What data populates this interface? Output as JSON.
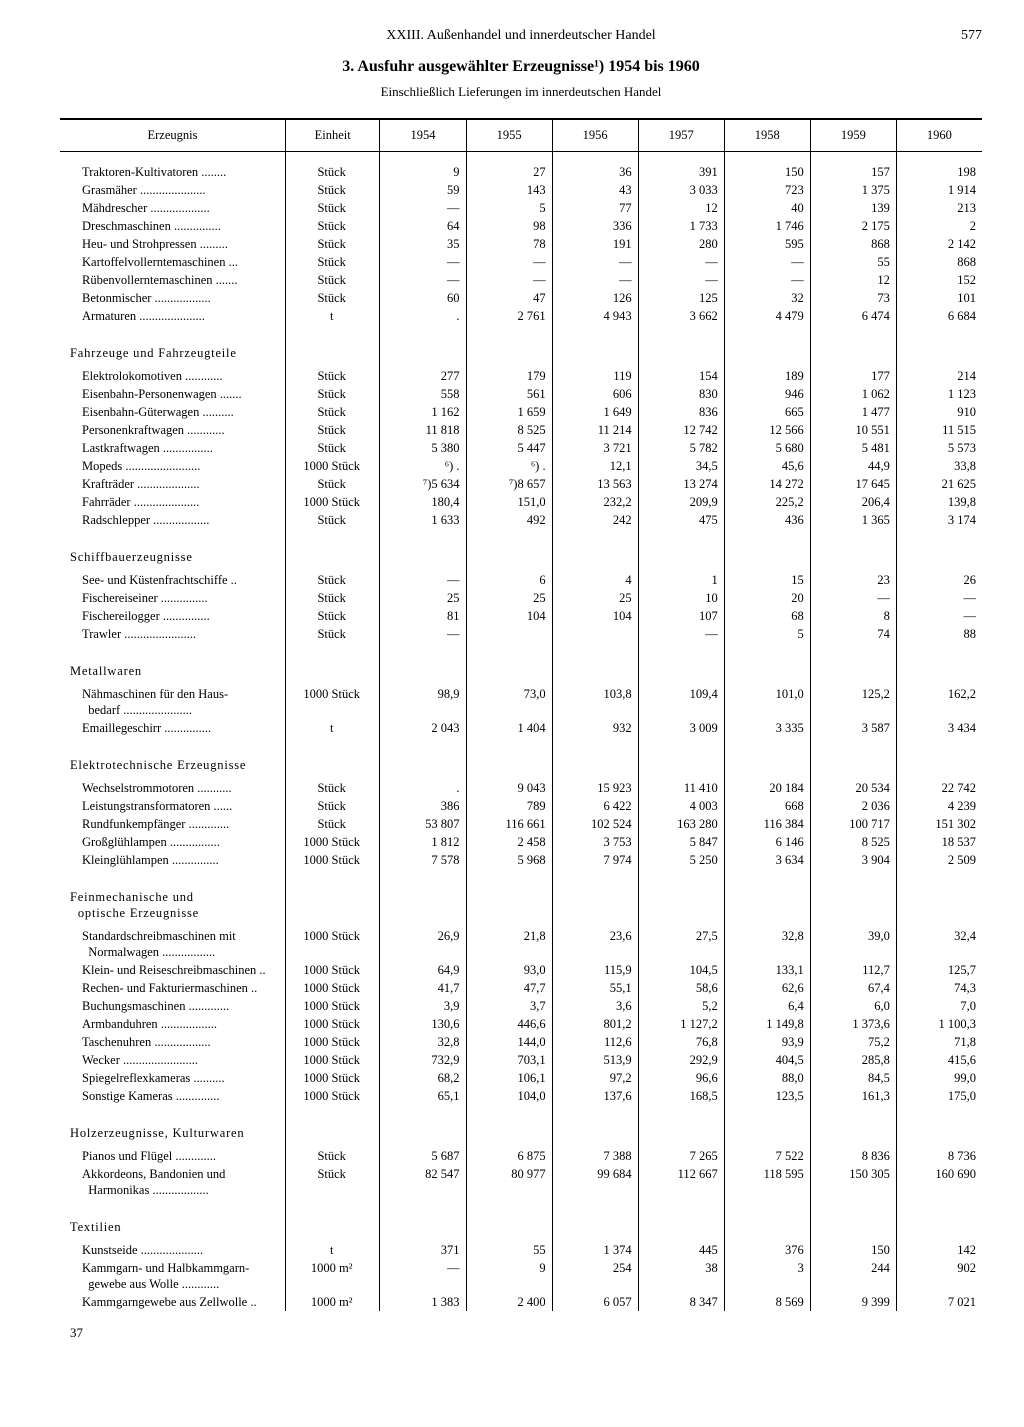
{
  "header": {
    "chapter": "XXIII. Außenhandel und innerdeutscher Handel",
    "page": "577"
  },
  "title": "3. Ausfuhr ausgewählter Erzeugnisse¹) 1954 bis 1960",
  "subtitle": "Einschließlich Lieferungen im innerdeutschen Handel",
  "columns": {
    "product": "Erzeugnis",
    "unit": "Einheit",
    "years": [
      "1954",
      "1955",
      "1956",
      "1957",
      "1958",
      "1959",
      "1960"
    ]
  },
  "footer": "37",
  "sections": [
    {
      "rows": [
        {
          "n": "Traktoren-Kultivatoren",
          "u": "Stück",
          "v": [
            "9",
            "27",
            "36",
            "391",
            "150",
            "157",
            "198"
          ]
        },
        {
          "n": "Grasmäher",
          "u": "Stück",
          "v": [
            "59",
            "143",
            "43",
            "3 033",
            "723",
            "1 375",
            "1 914"
          ]
        },
        {
          "n": "Mähdrescher",
          "u": "Stück",
          "v": [
            "—",
            "5",
            "77",
            "12",
            "40",
            "139",
            "213"
          ]
        },
        {
          "n": "Dreschmaschinen",
          "u": "Stück",
          "v": [
            "64",
            "98",
            "336",
            "1 733",
            "1 746",
            "2 175",
            "2"
          ]
        },
        {
          "n": "Heu- und Strohpressen",
          "u": "Stück",
          "v": [
            "35",
            "78",
            "191",
            "280",
            "595",
            "868",
            "2 142"
          ]
        },
        {
          "n": "Kartoffelvollerntemaschinen",
          "u": "Stück",
          "v": [
            "—",
            "—",
            "—",
            "—",
            "—",
            "55",
            "868"
          ]
        },
        {
          "n": "Rübenvollerntemaschinen",
          "u": "Stück",
          "v": [
            "—",
            "—",
            "—",
            "—",
            "—",
            "12",
            "152"
          ]
        },
        {
          "n": "Betonmischer",
          "u": "Stück",
          "v": [
            "60",
            "47",
            "126",
            "125",
            "32",
            "73",
            "101"
          ]
        },
        {
          "n": "Armaturen",
          "u": "t",
          "v": [
            ".",
            "2 761",
            "4 943",
            "3 662",
            "4 479",
            "6 474",
            "6 684"
          ]
        }
      ]
    },
    {
      "title": "Fahrzeuge und Fahrzeugteile",
      "rows": [
        {
          "n": "Elektrolokomotiven",
          "u": "Stück",
          "v": [
            "277",
            "179",
            "119",
            "154",
            "189",
            "177",
            "214"
          ]
        },
        {
          "n": "Eisenbahn-Personenwagen",
          "u": "Stück",
          "v": [
            "558",
            "561",
            "606",
            "830",
            "946",
            "1 062",
            "1 123"
          ]
        },
        {
          "n": "Eisenbahn-Güterwagen",
          "u": "Stück",
          "v": [
            "1 162",
            "1 659",
            "1 649",
            "836",
            "665",
            "1 477",
            "910"
          ]
        },
        {
          "n": "Personenkraftwagen",
          "u": "Stück",
          "v": [
            "11 818",
            "8 525",
            "11 214",
            "12 742",
            "12 566",
            "10 551",
            "11 515"
          ]
        },
        {
          "n": "Lastkraftwagen",
          "u": "Stück",
          "v": [
            "5 380",
            "5 447",
            "3 721",
            "5 782",
            "5 680",
            "5 481",
            "5 573"
          ]
        },
        {
          "n": "Mopeds",
          "u": "1000 Stück",
          "v": [
            "⁶) .",
            "⁶) .",
            "12,1",
            "34,5",
            "45,6",
            "44,9",
            "33,8"
          ]
        },
        {
          "n": "Krafträder",
          "u": "Stück",
          "v": [
            "⁷)5 634",
            "⁷)8 657",
            "13 563",
            "13 274",
            "14 272",
            "17 645",
            "21 625"
          ]
        },
        {
          "n": "Fahrräder",
          "u": "1000 Stück",
          "v": [
            "180,4",
            "151,0",
            "232,2",
            "209,9",
            "225,2",
            "206,4",
            "139,8"
          ]
        },
        {
          "n": "Radschlepper",
          "u": "Stück",
          "v": [
            "1 633",
            "492",
            "242",
            "475",
            "436",
            "1 365",
            "3 174"
          ]
        }
      ]
    },
    {
      "title": "Schiffbauerzeugnisse",
      "rows": [
        {
          "n": "See- und Küstenfrachtschiffe",
          "u": "Stück",
          "v": [
            "—",
            "6",
            "4",
            "1",
            "15",
            "23",
            "26"
          ]
        },
        {
          "n": "Fischereiseiner",
          "u": "Stück",
          "v": [
            "25",
            "25",
            "25",
            "10",
            "20",
            "—",
            "—"
          ]
        },
        {
          "n": "Fischereilogger",
          "u": "Stück",
          "v": [
            "81",
            "104",
            "104",
            "107",
            "68",
            "8",
            "—"
          ]
        },
        {
          "n": "Trawler",
          "u": "Stück",
          "v": [
            "—",
            "",
            "",
            "—",
            "5",
            "74",
            "88"
          ]
        }
      ]
    },
    {
      "title": "Metallwaren",
      "rows": [
        {
          "n": "Nähmaschinen für den Haus-\n  bedarf",
          "u": "1000 Stück",
          "v": [
            "98,9",
            "73,0",
            "103,8",
            "109,4",
            "101,0",
            "125,2",
            "162,2"
          ],
          "wrap": true
        },
        {
          "n": "Emaillegeschirr",
          "u": "t",
          "v": [
            "2 043",
            "1 404",
            "932",
            "3 009",
            "3 335",
            "3 587",
            "3 434"
          ]
        }
      ]
    },
    {
      "title": "Elektrotechnische Erzeugnisse",
      "rows": [
        {
          "n": "Wechselstrommotoren",
          "u": "Stück",
          "v": [
            ".",
            "9 043",
            "15 923",
            "11 410",
            "20 184",
            "20 534",
            "22 742"
          ]
        },
        {
          "n": "Leistungstransformatoren",
          "u": "Stück",
          "v": [
            "386",
            "789",
            "6 422",
            "4 003",
            "668",
            "2 036",
            "4 239"
          ]
        },
        {
          "n": "Rundfunkempfänger",
          "u": "Stück",
          "v": [
            "53 807",
            "116 661",
            "102 524",
            "163 280",
            "116 384",
            "100 717",
            "151 302"
          ]
        },
        {
          "n": "Großglühlampen",
          "u": "1000 Stück",
          "v": [
            "1 812",
            "2 458",
            "3 753",
            "5 847",
            "6 146",
            "8 525",
            "18 537"
          ]
        },
        {
          "n": "Kleinglühlampen",
          "u": "1000 Stück",
          "v": [
            "7 578",
            "5 968",
            "7 974",
            "5 250",
            "3 634",
            "3 904",
            "2 509"
          ]
        }
      ]
    },
    {
      "title": "Feinmechanische und\n  optische Erzeugnisse",
      "wrapTitle": true,
      "rows": [
        {
          "n": "Standardschreibmaschinen mit\n  Normalwagen",
          "u": "1000 Stück",
          "v": [
            "26,9",
            "21,8",
            "23,6",
            "27,5",
            "32,8",
            "39,0",
            "32,4"
          ],
          "wrap": true
        },
        {
          "n": "Klein- und Reiseschreibmaschinen",
          "u": "1000 Stück",
          "v": [
            "64,9",
            "93,0",
            "115,9",
            "104,5",
            "133,1",
            "112,7",
            "125,7"
          ]
        },
        {
          "n": "Rechen- und Fakturiermaschinen",
          "u": "1000 Stück",
          "v": [
            "41,7",
            "47,7",
            "55,1",
            "58,6",
            "62,6",
            "67,4",
            "74,3"
          ]
        },
        {
          "n": "Buchungsmaschinen",
          "u": "1000 Stück",
          "v": [
            "3,9",
            "3,7",
            "3,6",
            "5,2",
            "6,4",
            "6,0",
            "7,0"
          ]
        },
        {
          "n": "Armbanduhren",
          "u": "1000 Stück",
          "v": [
            "130,6",
            "446,6",
            "801,2",
            "1 127,2",
            "1 149,8",
            "1 373,6",
            "1 100,3"
          ]
        },
        {
          "n": "Taschenuhren",
          "u": "1000 Stück",
          "v": [
            "32,8",
            "144,0",
            "112,6",
            "76,8",
            "93,9",
            "75,2",
            "71,8"
          ]
        },
        {
          "n": "Wecker",
          "u": "1000 Stück",
          "v": [
            "732,9",
            "703,1",
            "513,9",
            "292,9",
            "404,5",
            "285,8",
            "415,6"
          ]
        },
        {
          "n": "Spiegelreflexkameras",
          "u": "1000 Stück",
          "v": [
            "68,2",
            "106,1",
            "97,2",
            "96,6",
            "88,0",
            "84,5",
            "99,0"
          ]
        },
        {
          "n": "Sonstige Kameras",
          "u": "1000 Stück",
          "v": [
            "65,1",
            "104,0",
            "137,6",
            "168,5",
            "123,5",
            "161,3",
            "175,0"
          ]
        }
      ]
    },
    {
      "title": "Holzerzeugnisse, Kulturwaren",
      "rows": [
        {
          "n": "Pianos und Flügel",
          "u": "Stück",
          "v": [
            "5 687",
            "6 875",
            "7 388",
            "7 265",
            "7 522",
            "8 836",
            "8 736"
          ]
        },
        {
          "n": "Akkordeons, Bandonien und\n  Harmonikas",
          "u": "Stück",
          "v": [
            "82 547",
            "80 977",
            "99 684",
            "112 667",
            "118 595",
            "150 305",
            "160 690"
          ],
          "wrap": true
        }
      ]
    },
    {
      "title": "Textilien",
      "rows": [
        {
          "n": "Kunstseide",
          "u": "t",
          "v": [
            "371",
            "55",
            "1 374",
            "445",
            "376",
            "150",
            "142"
          ]
        },
        {
          "n": "Kammgarn- und Halbkammgarn-\n  gewebe aus Wolle",
          "u": "1000 m²",
          "v": [
            "—",
            "9",
            "254",
            "38",
            "3",
            "244",
            "902"
          ],
          "wrap": true
        },
        {
          "n": "Kammgarngewebe aus Zellwolle",
          "u": "1000 m²",
          "v": [
            "1 383",
            "2 400",
            "6 057",
            "8 347",
            "8 569",
            "9 399",
            "7 021"
          ]
        }
      ]
    }
  ]
}
